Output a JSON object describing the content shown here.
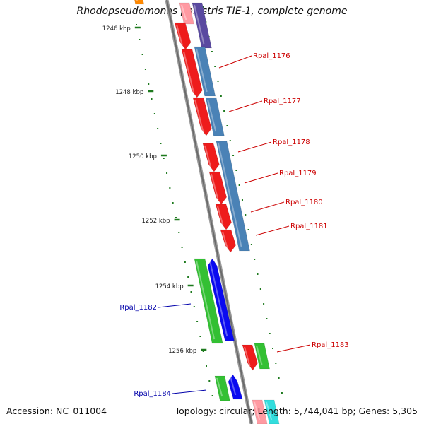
{
  "title": "Rhodopseudomonas palustris TIE-1, complete genome",
  "footer": {
    "accession": "Accession: NC_011004",
    "topology": "Topology: circular; Length: 5,744,041 bp; Genes: 5,305"
  },
  "colors": {
    "backbone": "#808080",
    "tick": "#1e7a1e",
    "tick_label": "#222222",
    "label_forward": "#cc0000",
    "label_reverse": "#0000aa",
    "cds_red": "#ee1c1c",
    "cds_blue": "#4a82b6",
    "cds_green": "#33c033",
    "cds_darkblue": "#0a0af0",
    "cds_orange": "#ff8800",
    "cds_cyan": "#33dddd",
    "cds_pink": "#ff9aa2",
    "cds_purple": "#5a4aa0"
  },
  "scale": {
    "tick_labels": [
      "1246 kbp",
      "1248 kbp",
      "1250 kbp",
      "1252 kbp",
      "1254 kbp",
      "1256 kbp"
    ]
  },
  "genes": [
    {
      "label": "Rpal_1176",
      "strand": "forward"
    },
    {
      "label": "Rpal_1177",
      "strand": "forward"
    },
    {
      "label": "Rpal_1178",
      "strand": "forward"
    },
    {
      "label": "Rpal_1179",
      "strand": "forward"
    },
    {
      "label": "Rpal_1180",
      "strand": "forward"
    },
    {
      "label": "Rpal_1181",
      "strand": "forward"
    },
    {
      "label": "Rpal_1182",
      "strand": "reverse"
    },
    {
      "label": "Rpal_1183",
      "strand": "forward"
    },
    {
      "label": "Rpal_1184",
      "strand": "reverse"
    }
  ]
}
